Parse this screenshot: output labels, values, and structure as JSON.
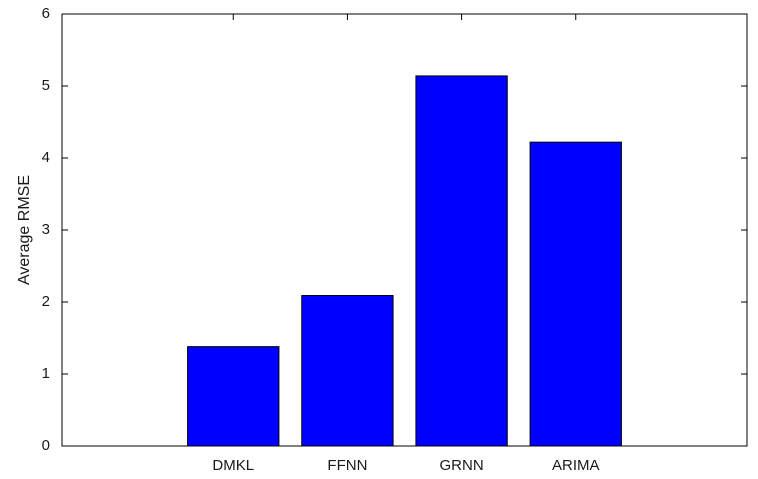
{
  "chart_data": {
    "type": "bar",
    "categories": [
      "DMKL",
      "FFNN",
      "GRNN",
      "ARIMA"
    ],
    "values": [
      1.38,
      2.09,
      5.14,
      4.22
    ],
    "title": "",
    "xlabel": "",
    "ylabel": "Average RMSE",
    "ylim": [
      0,
      6
    ],
    "yticks": [
      0,
      1,
      2,
      3,
      4,
      5,
      6
    ],
    "grid": false,
    "legend": "none",
    "colors": {
      "bar": "#0000ff",
      "bar_edge": "#000000",
      "axis": "#000000"
    }
  }
}
